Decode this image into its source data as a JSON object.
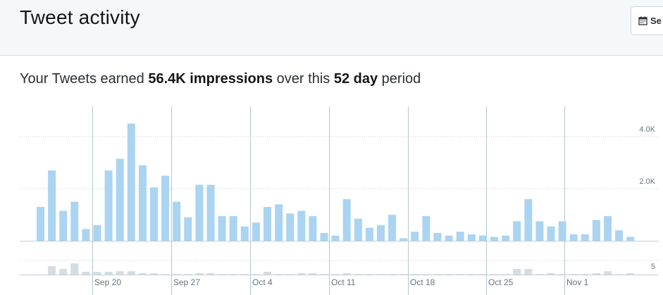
{
  "header": {
    "title": "Tweet activity",
    "date_button_label": "Se",
    "date_button_icon": "calendar-icon"
  },
  "summary": {
    "prefix": "Your Tweets earned",
    "impressions": "56.4K impressions",
    "middle": "over this",
    "period": "52 day",
    "suffix": "period"
  },
  "colors": {
    "impressions_bar": "#aad4f1",
    "engagement_bar": "#d5dde2",
    "gridline": "#c5ced5",
    "week_divider": "#b8c6d1",
    "label": "#66757f",
    "header_bg": "#f5f8fa"
  },
  "chart_data": [
    {
      "type": "bar",
      "title": "",
      "y_ticks": [
        "4.0K",
        "2.0K"
      ],
      "y_tick_values": [
        4000,
        2000
      ],
      "ylim": [
        0,
        5000
      ],
      "x_tick_labels": [
        "Sep 20",
        "Sep 27",
        "Oct 4",
        "Oct 11",
        "Oct 18",
        "Oct 25",
        "Nov 1"
      ],
      "grid": "horizontal dotted",
      "series": [
        {
          "values": [
            1300,
            2700,
            1150,
            1500,
            450,
            600,
            2700,
            3150,
            4500,
            2900,
            2050,
            2500,
            1500,
            900,
            2150,
            2150,
            950,
            950,
            550,
            700,
            1300,
            1400,
            1050,
            1150,
            950,
            300,
            200,
            1600,
            850,
            500,
            600,
            1000,
            100,
            350,
            950,
            300,
            200,
            350,
            250,
            200,
            150,
            200,
            750,
            1600,
            750,
            550,
            750,
            250,
            250,
            800,
            950,
            400,
            150
          ]
        }
      ]
    },
    {
      "type": "bar",
      "y_ticks": [
        "5"
      ],
      "y_tick_values": [
        5
      ],
      "ylim": [
        0,
        5
      ],
      "series": [
        {
          "values": [
            0,
            3,
            2,
            4,
            1,
            1,
            1,
            1.2,
            1.2,
            0.5,
            0.5,
            0.2,
            0.2,
            0.2,
            0.5,
            0.5,
            0.2,
            0.2,
            0.2,
            0.2,
            1,
            0.2,
            0.2,
            0.5,
            0.5,
            0.2,
            0.2,
            0.5,
            0.2,
            0.2,
            0.2,
            0.2,
            0.2,
            0.2,
            0.2,
            0.2,
            0.2,
            0.2,
            0.2,
            0.2,
            0.2,
            0.2,
            2,
            2,
            0.2,
            0.5,
            0.2,
            0.2,
            0.2,
            0.5,
            1.2,
            0.2,
            0.5
          ]
        }
      ]
    }
  ]
}
